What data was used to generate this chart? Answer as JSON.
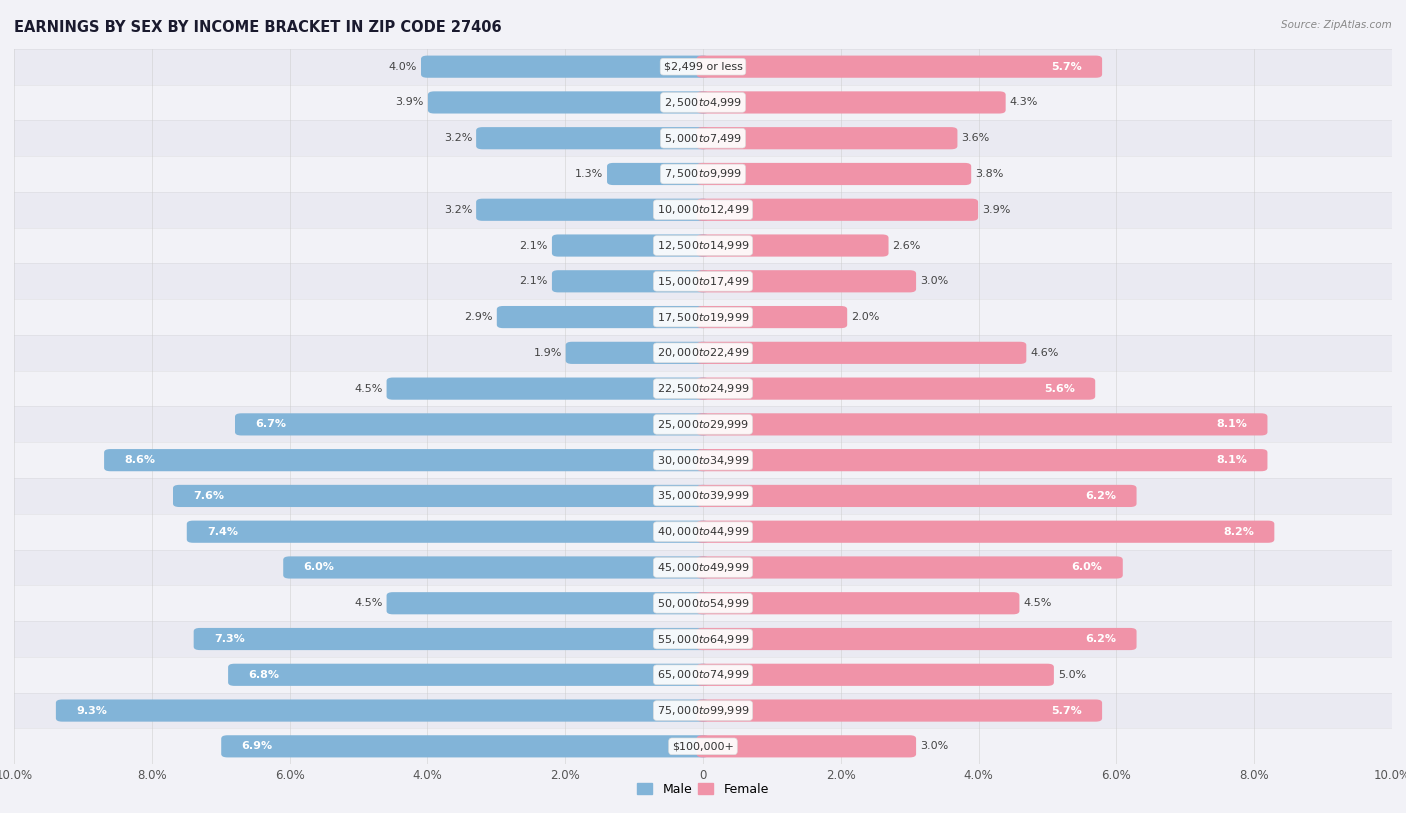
{
  "title": "EARNINGS BY SEX BY INCOME BRACKET IN ZIP CODE 27406",
  "source": "Source: ZipAtlas.com",
  "categories": [
    "$2,499 or less",
    "$2,500 to $4,999",
    "$5,000 to $7,499",
    "$7,500 to $9,999",
    "$10,000 to $12,499",
    "$12,500 to $14,999",
    "$15,000 to $17,499",
    "$17,500 to $19,999",
    "$20,000 to $22,499",
    "$22,500 to $24,999",
    "$25,000 to $29,999",
    "$30,000 to $34,999",
    "$35,000 to $39,999",
    "$40,000 to $44,999",
    "$45,000 to $49,999",
    "$50,000 to $54,999",
    "$55,000 to $64,999",
    "$65,000 to $74,999",
    "$75,000 to $99,999",
    "$100,000+"
  ],
  "male_values": [
    4.0,
    3.9,
    3.2,
    1.3,
    3.2,
    2.1,
    2.1,
    2.9,
    1.9,
    4.5,
    6.7,
    8.6,
    7.6,
    7.4,
    6.0,
    4.5,
    7.3,
    6.8,
    9.3,
    6.9
  ],
  "female_values": [
    5.7,
    4.3,
    3.6,
    3.8,
    3.9,
    2.6,
    3.0,
    2.0,
    4.6,
    5.6,
    8.1,
    8.1,
    6.2,
    8.2,
    6.0,
    4.5,
    6.2,
    5.0,
    5.7,
    3.0
  ],
  "male_color": "#82b4d8",
  "female_color": "#f093a8",
  "axis_max": 10.0,
  "background_color": "#f2f2f7",
  "row_color_odd": "#eaeaf2",
  "row_color_even": "#f2f2f7",
  "title_fontsize": 10.5,
  "label_fontsize": 8.0,
  "tick_fontsize": 8.5,
  "cat_label_fontsize": 8.0,
  "white_label_threshold": 5.5
}
